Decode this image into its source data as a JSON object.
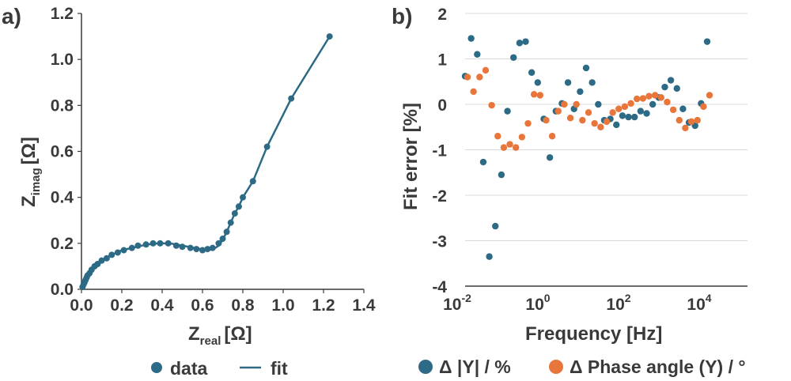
{
  "colors": {
    "data": "#2c6a85",
    "fit": "#2c6a85",
    "series_y": "#2c6a85",
    "series_phase": "#e8753a",
    "text": "#3a3a3a",
    "grid": "#d9d9d9"
  },
  "chart_data": [
    {
      "panel": "a)",
      "type": "scatter",
      "xlabel_main": "Z",
      "xlabel_sub": "real",
      "xlabel_unit": "[Ω]",
      "ylabel_main": "Z",
      "ylabel_sub": "imag",
      "ylabel_unit": "[Ω]",
      "xlim": [
        0,
        1.4
      ],
      "ylim": [
        0,
        1.2
      ],
      "xticks": [
        "0.0",
        "0.2",
        "0.4",
        "0.6",
        "0.8",
        "1.0",
        "1.2",
        "1.4"
      ],
      "yticks": [
        "0.0",
        "0.2",
        "0.4",
        "0.6",
        "0.8",
        "1.0",
        "1.2"
      ],
      "legend": {
        "data_label": "data",
        "fit_label": "fit",
        "position": "bottom"
      },
      "series": [
        {
          "name": "data",
          "kind": "points",
          "x": [
            0.005,
            0.01,
            0.015,
            0.02,
            0.025,
            0.03,
            0.04,
            0.05,
            0.065,
            0.08,
            0.1,
            0.125,
            0.15,
            0.18,
            0.21,
            0.25,
            0.28,
            0.32,
            0.355,
            0.39,
            0.43,
            0.47,
            0.5,
            0.54,
            0.57,
            0.6,
            0.625,
            0.65,
            0.68,
            0.7,
            0.72,
            0.74,
            0.76,
            0.78,
            0.8,
            0.85,
            0.92,
            1.04,
            1.23
          ],
          "y": [
            0.01,
            0.02,
            0.03,
            0.04,
            0.05,
            0.06,
            0.07,
            0.085,
            0.1,
            0.11,
            0.125,
            0.135,
            0.15,
            0.16,
            0.17,
            0.18,
            0.19,
            0.195,
            0.2,
            0.2,
            0.2,
            0.19,
            0.185,
            0.18,
            0.175,
            0.17,
            0.175,
            0.18,
            0.2,
            0.22,
            0.25,
            0.29,
            0.33,
            0.36,
            0.4,
            0.47,
            0.62,
            0.83,
            1.1
          ]
        },
        {
          "name": "fit",
          "kind": "line",
          "x": [
            0.0,
            0.01,
            0.02,
            0.04,
            0.06,
            0.08,
            0.1,
            0.15,
            0.2,
            0.25,
            0.3,
            0.35,
            0.4,
            0.45,
            0.5,
            0.55,
            0.6,
            0.65,
            0.68,
            0.7,
            0.72,
            0.74,
            0.76,
            0.78,
            0.8,
            0.85,
            0.92,
            1.04,
            1.23
          ],
          "y": [
            0.0,
            0.02,
            0.04,
            0.07,
            0.095,
            0.11,
            0.125,
            0.15,
            0.17,
            0.18,
            0.19,
            0.198,
            0.2,
            0.198,
            0.19,
            0.182,
            0.174,
            0.172,
            0.19,
            0.215,
            0.25,
            0.29,
            0.33,
            0.36,
            0.4,
            0.47,
            0.62,
            0.83,
            1.1
          ]
        }
      ]
    },
    {
      "panel": "b)",
      "type": "scatter",
      "xlabel": "Frequency [Hz]",
      "ylabel": "Fit error [%]",
      "xscale": "log",
      "xlim_log10": [
        -2,
        5
      ],
      "ylim": [
        -4,
        2
      ],
      "xticks": [
        {
          "base": "10",
          "exp": "-2",
          "log10": -2
        },
        {
          "base": "10",
          "exp": "0",
          "log10": 0
        },
        {
          "base": "10",
          "exp": "2",
          "log10": 2
        },
        {
          "base": "10",
          "exp": "4",
          "log10": 4
        }
      ],
      "yticks": [
        "2",
        "1",
        "0",
        "-1",
        "-2",
        "-3",
        "-4"
      ],
      "grid": true,
      "legend": {
        "label_y": "Δ |Y| / %",
        "label_phase": "Δ Phase angle (Y) / °",
        "position": "bottom"
      },
      "series": [
        {
          "name": "Δ |Y| / %",
          "color": "#2c6a85",
          "log10_f": [
            -2.0,
            -1.85,
            -1.7,
            -1.55,
            -1.4,
            -1.25,
            -1.1,
            -0.95,
            -0.8,
            -0.65,
            -0.5,
            -0.35,
            -0.2,
            -0.05,
            0.1,
            0.25,
            0.4,
            0.55,
            0.7,
            0.85,
            1.0,
            1.15,
            1.3,
            1.45,
            1.6,
            1.75,
            1.9,
            2.05,
            2.2,
            2.35,
            2.5,
            2.65,
            2.8,
            2.95,
            3.1,
            3.25,
            3.4,
            3.55,
            3.7,
            3.85,
            4.0
          ],
          "values": [
            0.62,
            1.45,
            1.1,
            -1.27,
            -3.35,
            -2.68,
            -1.55,
            -0.15,
            1.03,
            1.35,
            1.38,
            0.7,
            0.48,
            -0.32,
            -1.17,
            -0.15,
            0.02,
            0.48,
            -0.1,
            0.28,
            0.8,
            0.48,
            0.0,
            -0.35,
            -0.32,
            -0.45,
            -0.25,
            -0.28,
            -0.28,
            -0.15,
            -0.2,
            0.0,
            0.15,
            0.38,
            0.53,
            0.35,
            -0.1,
            -0.4,
            -0.47,
            0.02,
            1.38
          ]
        },
        {
          "name": "Δ Phase angle (Y) / °",
          "color": "#e8753a",
          "log10_f": [
            -2.0,
            -1.85,
            -1.7,
            -1.55,
            -1.4,
            -1.25,
            -1.1,
            -0.95,
            -0.8,
            -0.65,
            -0.5,
            -0.35,
            -0.2,
            -0.05,
            0.1,
            0.25,
            0.4,
            0.55,
            0.7,
            0.85,
            1.0,
            1.15,
            1.3,
            1.45,
            1.6,
            1.75,
            1.9,
            2.05,
            2.2,
            2.35,
            2.5,
            2.65,
            2.8,
            2.95,
            3.1,
            3.25,
            3.4,
            3.55,
            3.7,
            3.85,
            4.0
          ],
          "values": [
            0.6,
            0.28,
            0.6,
            0.75,
            -0.02,
            -0.7,
            -0.95,
            -0.88,
            -0.95,
            -0.72,
            -0.42,
            0.22,
            0.2,
            -0.35,
            -0.7,
            -0.15,
            0.0,
            -0.3,
            0.0,
            -0.35,
            -0.18,
            -0.42,
            -0.5,
            -0.38,
            -0.18,
            -0.1,
            -0.05,
            0.02,
            0.12,
            0.13,
            0.18,
            0.2,
            0.15,
            0.05,
            -0.12,
            -0.35,
            -0.52,
            -0.38,
            -0.35,
            -0.05,
            0.2
          ]
        }
      ]
    }
  ]
}
